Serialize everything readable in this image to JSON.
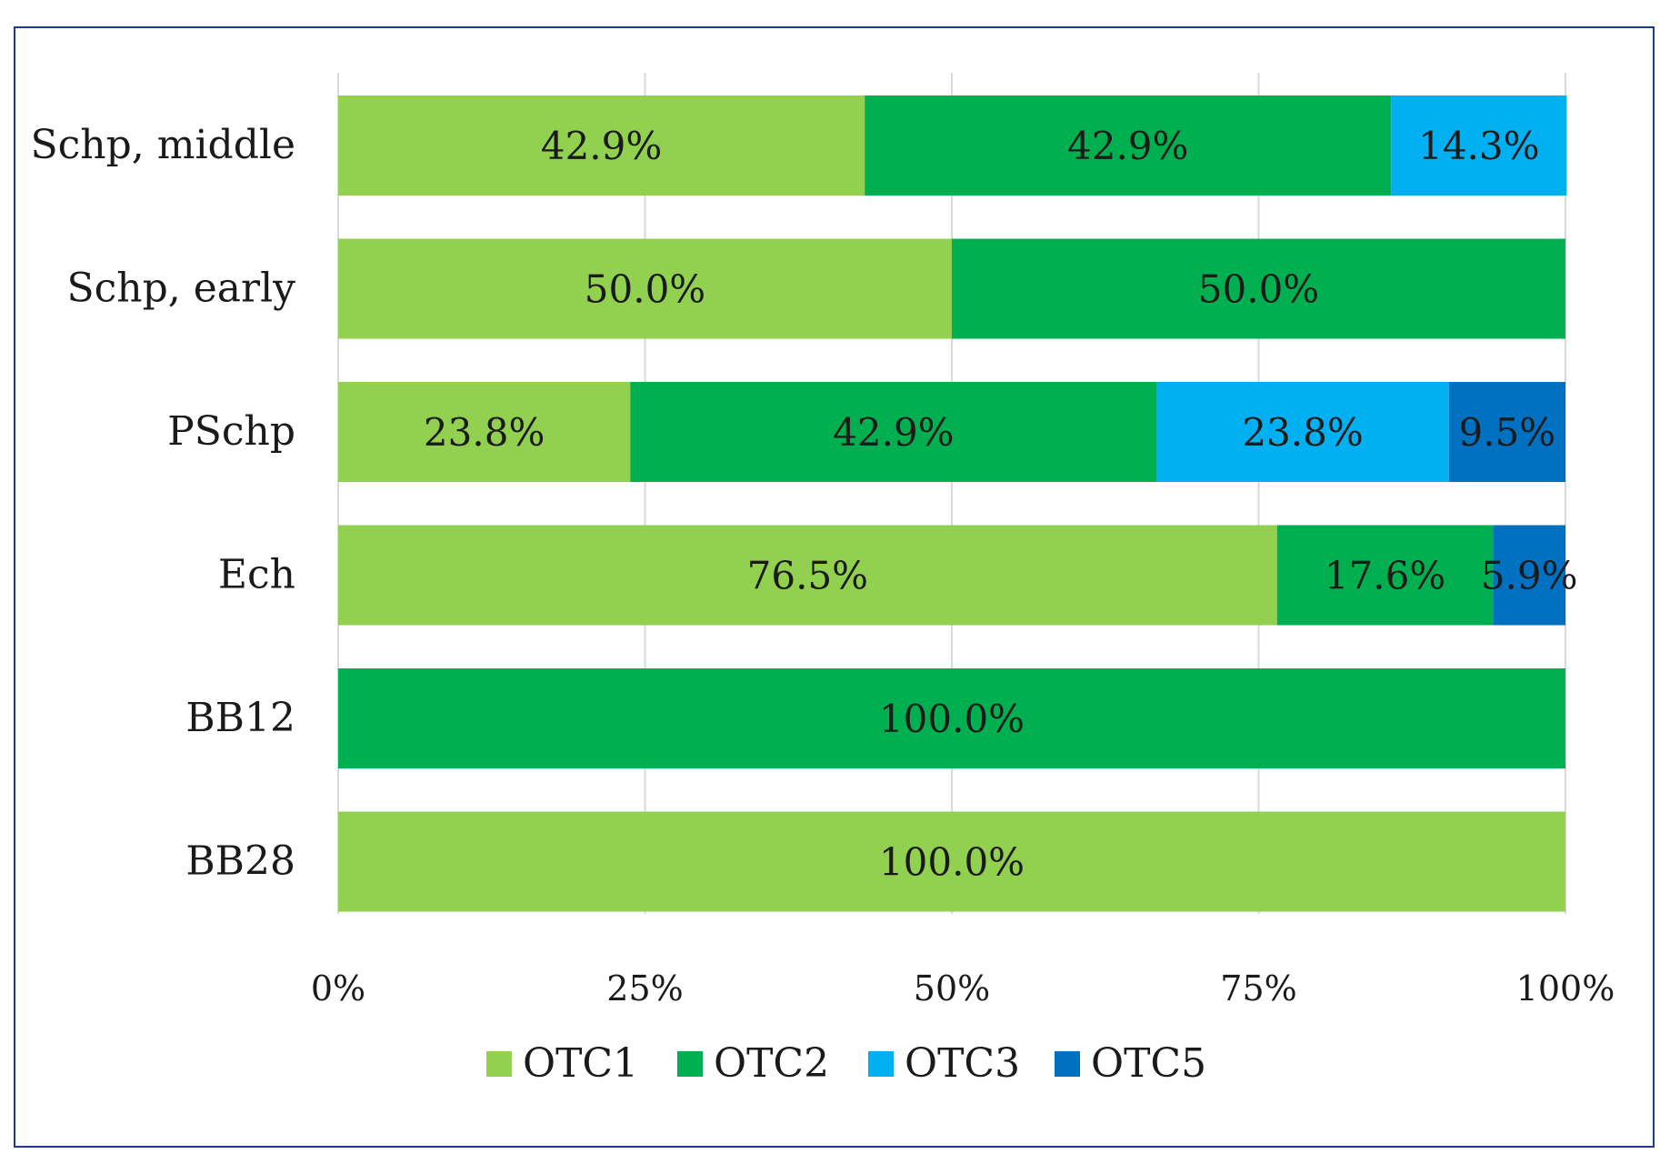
{
  "chart_data": {
    "type": "bar",
    "orientation": "horizontal",
    "stacked": true,
    "percent_stacked": true,
    "title": "",
    "xlabel": "",
    "ylabel": "",
    "xlim": [
      0,
      100
    ],
    "grid": true,
    "legend_position": "bottom",
    "categories": [
      "Schp, middle",
      "Schp, early",
      "PSchp",
      "Ech",
      "BB12",
      "BB28"
    ],
    "x_ticks": [
      "0%",
      "25%",
      "50%",
      "75%",
      "100%"
    ],
    "series": [
      {
        "name": "OTC1",
        "color": "#92d050",
        "values": [
          42.9,
          50.0,
          23.8,
          76.5,
          0,
          100.0
        ],
        "labels": [
          "42.9%",
          "50.0%",
          "23.8%",
          "76.5%",
          "",
          "100.0%"
        ]
      },
      {
        "name": "OTC2",
        "color": "#00b050",
        "values": [
          42.9,
          50.0,
          42.9,
          17.6,
          100.0,
          0
        ],
        "labels": [
          "42.9%",
          "50.0%",
          "42.9%",
          "17.6%",
          "100.0%",
          ""
        ]
      },
      {
        "name": "OTC3",
        "color": "#00b0f0",
        "values": [
          14.3,
          0,
          23.8,
          0,
          0,
          0
        ],
        "labels": [
          "14.3%",
          "",
          "23.8%",
          "",
          "",
          ""
        ]
      },
      {
        "name": "OTC5",
        "color": "#0070c0",
        "values": [
          0,
          0,
          9.5,
          5.9,
          0,
          0
        ],
        "labels": [
          "",
          "",
          "9.5%",
          "5.9%",
          "",
          ""
        ]
      }
    ]
  },
  "colors": {
    "frame": "#1f3a8a",
    "grid": "#d9d9d9",
    "text": "#1a1a1a"
  }
}
